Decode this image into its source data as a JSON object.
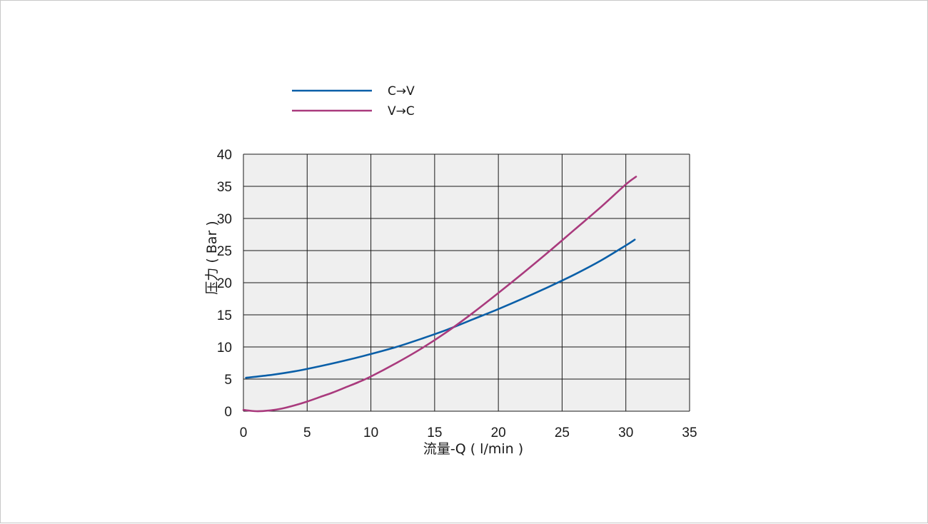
{
  "chart_data": {
    "type": "line",
    "title": "",
    "xlabel": "流量-Q ( l/min )",
    "ylabel": "压力 ( Bar )",
    "xlim": [
      0,
      35
    ],
    "ylim": [
      0,
      40
    ],
    "xticks": [
      0,
      5,
      10,
      15,
      20,
      25,
      30,
      35
    ],
    "yticks": [
      0,
      5,
      10,
      15,
      20,
      25,
      30,
      35,
      40
    ],
    "grid": true,
    "plot_background": "#efefef",
    "grid_color": "#1a1a1a",
    "legend_position": "top-left",
    "series": [
      {
        "name": "C→V",
        "color": "#0a5fa8",
        "points": [
          [
            0.2,
            5.2
          ],
          [
            2,
            5.6
          ],
          [
            4,
            6.2
          ],
          [
            6,
            7.0
          ],
          [
            8,
            7.9
          ],
          [
            10,
            8.9
          ],
          [
            12,
            10.0
          ],
          [
            14,
            11.3
          ],
          [
            16,
            12.7
          ],
          [
            18,
            14.3
          ],
          [
            20,
            15.9
          ],
          [
            22,
            17.6
          ],
          [
            24,
            19.4
          ],
          [
            26,
            21.3
          ],
          [
            28,
            23.4
          ],
          [
            30,
            25.8
          ],
          [
            30.7,
            26.7
          ]
        ]
      },
      {
        "name": "V→C",
        "color": "#a93a7d",
        "points": [
          [
            0,
            0.2
          ],
          [
            1,
            0.0
          ],
          [
            2,
            0.1
          ],
          [
            3,
            0.4
          ],
          [
            4,
            0.9
          ],
          [
            5,
            1.5
          ],
          [
            6,
            2.2
          ],
          [
            7,
            2.9
          ],
          [
            8,
            3.7
          ],
          [
            9,
            4.5
          ],
          [
            10,
            5.4
          ],
          [
            12,
            7.5
          ],
          [
            14,
            9.8
          ],
          [
            16,
            12.4
          ],
          [
            18,
            15.3
          ],
          [
            20,
            18.4
          ],
          [
            22,
            21.6
          ],
          [
            24,
            24.9
          ],
          [
            26,
            28.3
          ],
          [
            28,
            31.7
          ],
          [
            30,
            35.3
          ],
          [
            30.8,
            36.5
          ]
        ]
      }
    ]
  }
}
